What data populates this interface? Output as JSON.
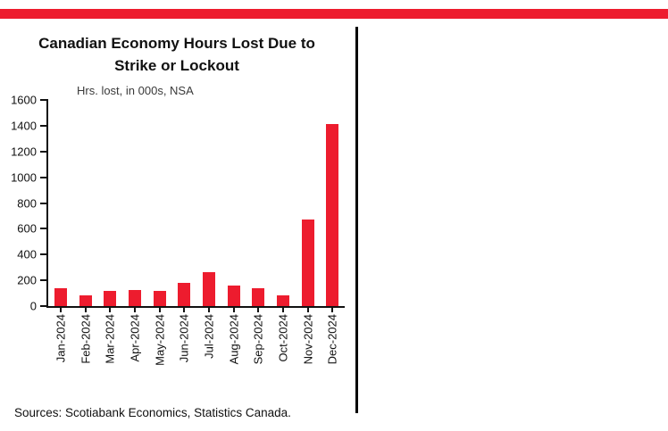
{
  "colors": {
    "accent_red": "#ED1C2E",
    "axis": "#111111",
    "divider": "#000000"
  },
  "chart": {
    "title_line1": "Canadian Economy Hours Lost Due to",
    "title_line2": "Strike or Lockout",
    "subtitle": "Hrs. lost, in 000s, NSA",
    "source": "Sources: Scotiabank Economics, Statistics Canada."
  },
  "chart_data": {
    "type": "bar",
    "title": "Canadian Economy Hours Lost Due to Strike or Lockout",
    "subtitle": "Hrs. lost, in 000s, NSA",
    "categories": [
      "Jan-2024",
      "Feb-2024",
      "Mar-2024",
      "Apr-2024",
      "May-2024",
      "Jun-2024",
      "Jul-2024",
      "Aug-2024",
      "Sep-2024",
      "Oct-2024",
      "Nov-2024",
      "Dec-2024"
    ],
    "values": [
      140,
      85,
      120,
      125,
      120,
      180,
      260,
      160,
      140,
      80,
      670,
      1410
    ],
    "xlabel": "",
    "ylabel": "",
    "ylim": [
      0,
      1600
    ],
    "ytick_step": 200,
    "bar_color": "#ED1C2E",
    "grid": false,
    "legend_position": "none",
    "source": "Sources: Scotiabank Economics, Statistics Canada."
  }
}
